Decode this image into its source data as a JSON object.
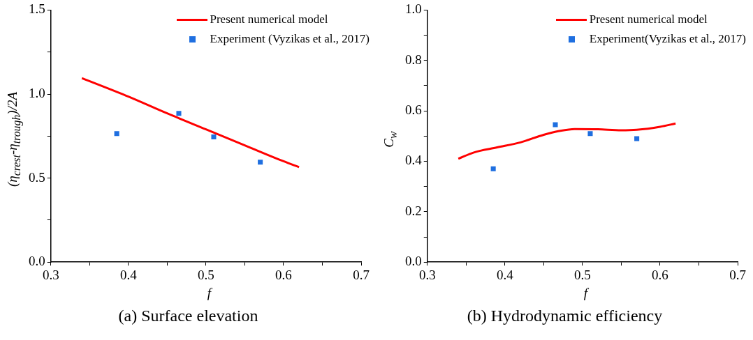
{
  "chart_data": [
    {
      "type": "line",
      "title": "(a) Surface elevation",
      "xlabel": "f",
      "ylabel": "(η$_{crest}$-η$_{trough}$)/2A",
      "series": [
        {
          "name": "Present numerical model",
          "type": "line",
          "color": "#ff0000",
          "marker": "none",
          "x": [
            0.34,
            0.4,
            0.45,
            0.5,
            0.55,
            0.6,
            0.62
          ],
          "values": [
            1.095,
            0.985,
            0.885,
            0.79,
            0.695,
            0.6,
            0.565
          ]
        },
        {
          "name": "Experiment (Vyzikas et al., 2017)",
          "type": "scatter",
          "color": "#1f6fe0",
          "marker": "square",
          "x": [
            0.385,
            0.465,
            0.51,
            0.57
          ],
          "values": [
            0.765,
            0.885,
            0.745,
            0.595
          ]
        }
      ],
      "xlim": [
        0.3,
        0.7
      ],
      "xticks": [
        0.3,
        {
          "value": 0.35,
          "label": null
        },
        0.4,
        {
          "value": 0.45,
          "label": null
        },
        0.5,
        {
          "value": 0.55,
          "label": null
        },
        0.6,
        {
          "value": 0.65,
          "label": null
        },
        0.7
      ],
      "ylim": [
        0,
        1.5
      ],
      "yticks": [
        {
          "value": 0,
          "label": "0.0"
        },
        {
          "value": 0.25,
          "label": null
        },
        0.5,
        {
          "value": 0.75,
          "label": null
        },
        {
          "value": 1,
          "label": "1.0"
        },
        {
          "value": 1.25,
          "label": null
        },
        1.5
      ],
      "grid": false,
      "legend": "top right"
    },
    {
      "type": "line",
      "title": "(b) Hydrodynamic efficiency",
      "xlabel": "f",
      "ylabel": "C$_{w}$",
      "series": [
        {
          "name": "Present numerical model",
          "type": "line",
          "color": "#ff0000",
          "marker": "none",
          "x": [
            0.34,
            0.36,
            0.39,
            0.42,
            0.45,
            0.47,
            0.49,
            0.52,
            0.55,
            0.57,
            0.6,
            0.62
          ],
          "values": [
            0.41,
            0.435,
            0.455,
            0.475,
            0.505,
            0.52,
            0.528,
            0.527,
            0.523,
            0.525,
            0.537,
            0.55
          ]
        },
        {
          "name": "Experiment(Vyzikas et al., 2017)",
          "type": "scatter",
          "color": "#1f6fe0",
          "marker": "square",
          "x": [
            0.385,
            0.465,
            0.51,
            0.57
          ],
          "values": [
            0.37,
            0.545,
            0.51,
            0.49
          ]
        }
      ],
      "xlim": [
        0.3,
        0.7
      ],
      "xticks": [
        0.3,
        {
          "value": 0.35,
          "label": null
        },
        0.4,
        {
          "value": 0.45,
          "label": null
        },
        0.5,
        {
          "value": 0.55,
          "label": null
        },
        0.6,
        {
          "value": 0.65,
          "label": null
        },
        0.7
      ],
      "ylim": [
        0,
        1
      ],
      "yticks": [
        {
          "value": 0,
          "label": "0.0"
        },
        {
          "value": 0.1,
          "label": null
        },
        0.2,
        {
          "value": 0.3,
          "label": null
        },
        0.4,
        {
          "value": 0.5,
          "label": null
        },
        0.6,
        {
          "value": 0.7,
          "label": null
        },
        0.8,
        {
          "value": 0.9,
          "label": null
        },
        {
          "value": 1,
          "label": "1.0"
        }
      ],
      "grid": false,
      "legend": "top right"
    }
  ]
}
